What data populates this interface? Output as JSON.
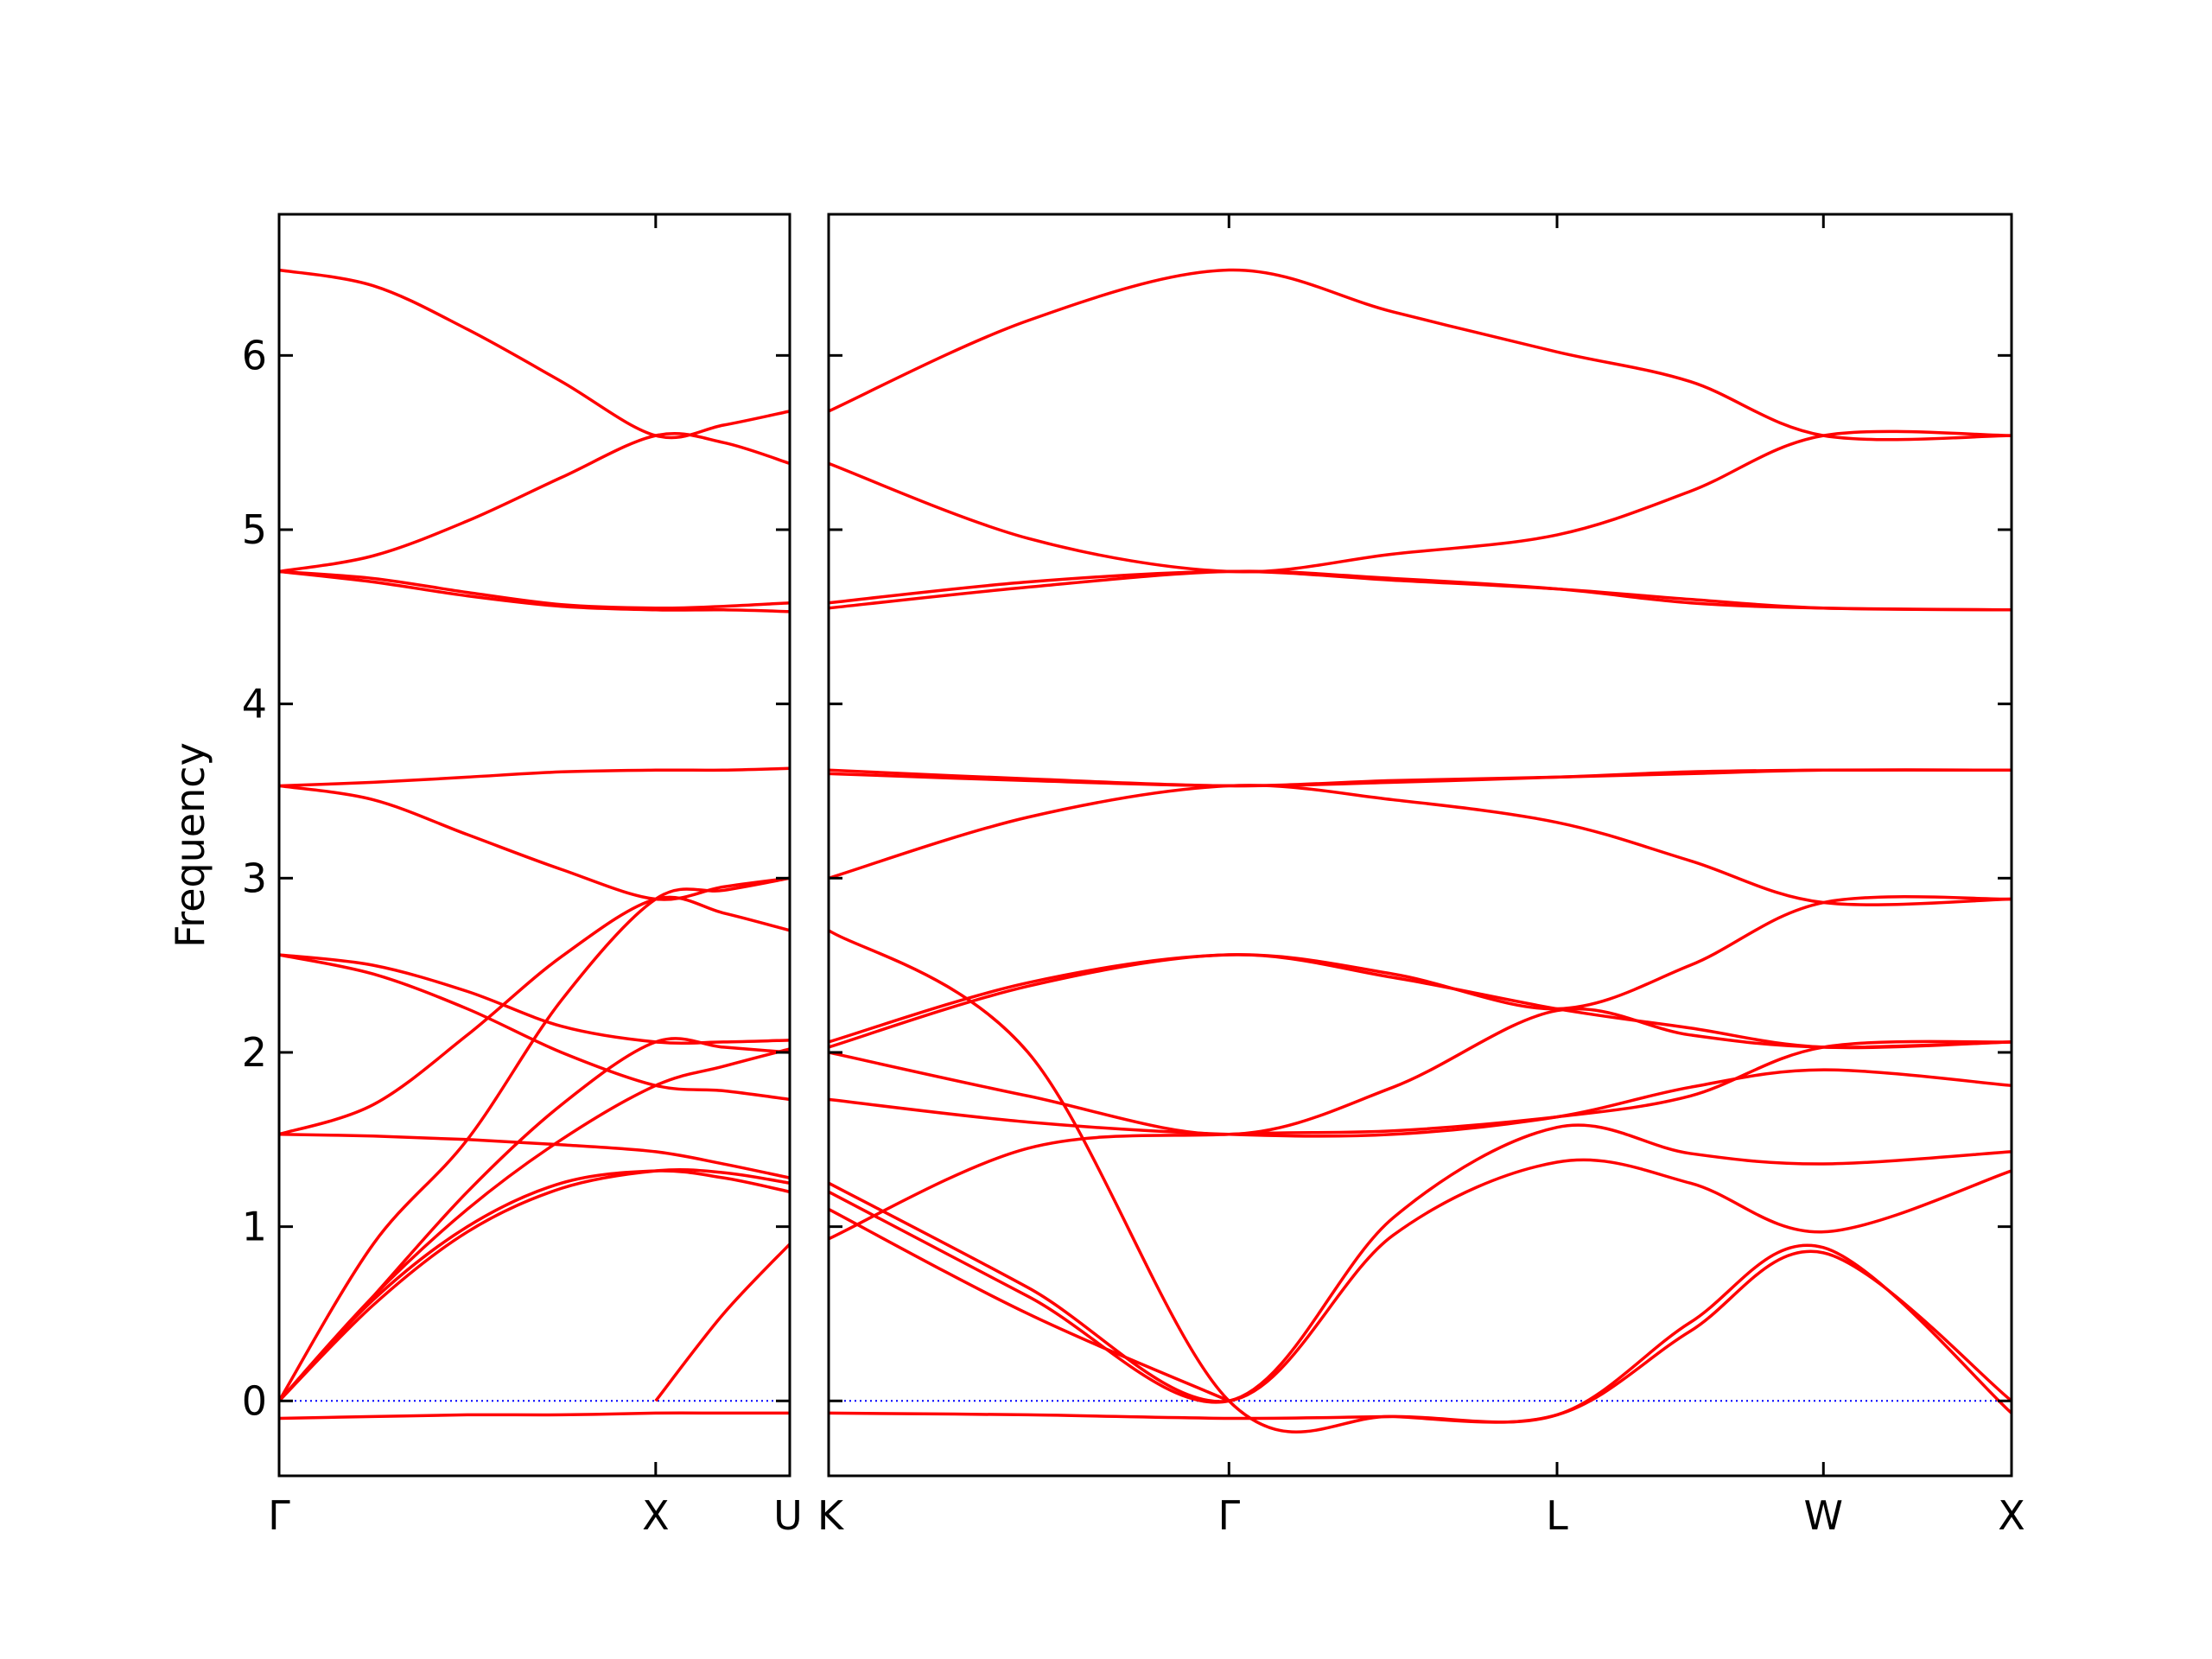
{
  "chart_data": [
    {
      "type": "line",
      "ylabel": "Frequency",
      "x": [
        0,
        0.25,
        0.5,
        0.75,
        1.0,
        1.18,
        1.356
      ],
      "xlim": [
        0,
        1.356
      ],
      "ylim": [
        -0.43,
        6.81
      ],
      "xticks": [
        {
          "value": 0,
          "label": "Γ"
        },
        {
          "value": 1.0,
          "label": "X"
        },
        {
          "value": 1.356,
          "label": "U"
        }
      ],
      "yticks": [
        0,
        1,
        2,
        3,
        4,
        5,
        6
      ],
      "show_ytick_labels": true,
      "reference_line": {
        "value": 0,
        "color": "#0000ff"
      },
      "series": [
        {
          "color": "#ff0000",
          "values": [
            -0.1,
            -0.09,
            -0.08,
            -0.08,
            -0.07,
            -0.07,
            -0.07
          ]
        },
        {
          "color": "#ff0000",
          "values": [
            null,
            null,
            null,
            null,
            0,
            0.5,
            0.9
          ]
        },
        {
          "color": "#ff0000",
          "values": [
            0,
            0.55,
            0.97,
            1.22,
            1.32,
            1.31,
            1.25
          ]
        },
        {
          "color": "#ff0000",
          "values": [
            0,
            0.58,
            1.0,
            1.25,
            1.32,
            1.28,
            1.2
          ]
        },
        {
          "color": "#ff0000",
          "values": [
            0,
            0.6,
            1.1,
            1.5,
            1.81,
            1.92,
            2.02
          ]
        },
        {
          "color": "#ff0000",
          "values": [
            0,
            0.9,
            1.5,
            2.3,
            2.88,
            2.93,
            3.0
          ]
        },
        {
          "color": "#ff0000",
          "values": [
            1.53,
            1.52,
            1.5,
            1.47,
            1.43,
            1.36,
            1.28
          ]
        },
        {
          "color": "#ff0000",
          "values": [
            1.53,
            1.7,
            2.1,
            2.55,
            2.88,
            2.8,
            2.7
          ]
        },
        {
          "color": "#ff0000",
          "values": [
            2.56,
            2.5,
            2.35,
            2.15,
            2.06,
            2.06,
            2.07
          ]
        },
        {
          "color": "#ff0000",
          "values": [
            2.56,
            2.45,
            2.25,
            2.0,
            1.81,
            1.78,
            1.73
          ]
        },
        {
          "color": "#ff0000",
          "values": [
            0,
            0.6,
            1.2,
            1.7,
            2.06,
            2.03,
            2.0
          ]
        },
        {
          "color": "#ff0000",
          "values": [
            3.53,
            3.45,
            3.25,
            3.05,
            2.88,
            2.95,
            3.0
          ]
        },
        {
          "color": "#ff0000",
          "values": [
            3.53,
            3.55,
            3.58,
            3.61,
            3.62,
            3.62,
            3.63
          ]
        },
        {
          "color": "#ff0000",
          "values": [
            4.76,
            4.7,
            4.62,
            4.56,
            4.54,
            4.54,
            4.53
          ]
        },
        {
          "color": "#ff0000",
          "values": [
            4.76,
            4.72,
            4.64,
            4.57,
            4.55,
            4.56,
            4.58
          ]
        },
        {
          "color": "#ff0000",
          "values": [
            4.76,
            4.85,
            5.05,
            5.3,
            5.54,
            5.5,
            5.38
          ]
        },
        {
          "color": "#ff0000",
          "values": [
            6.49,
            6.4,
            6.15,
            5.85,
            5.54,
            5.6,
            5.68
          ]
        }
      ]
    },
    {
      "type": "line",
      "x": [
        0,
        0.53,
        1.064,
        1.5,
        1.936,
        2.29,
        2.644,
        3.144
      ],
      "xlim": [
        0,
        3.144
      ],
      "ylim": [
        -0.43,
        6.81
      ],
      "xticks": [
        {
          "value": 0,
          "label": "K"
        },
        {
          "value": 1.064,
          "label": "Γ"
        },
        {
          "value": 1.936,
          "label": "L"
        },
        {
          "value": 2.644,
          "label": "W"
        },
        {
          "value": 3.144,
          "label": "X"
        }
      ],
      "yticks": [
        0,
        1,
        2,
        3,
        4,
        5,
        6
      ],
      "show_ytick_labels": false,
      "reference_line": {
        "value": 0,
        "color": "#0000ff"
      },
      "series": [
        {
          "color": "#ff0000",
          "values": [
            -0.07,
            -0.08,
            -0.1,
            -0.09,
            -0.08,
            0.45,
            0.88,
            -0.07
          ]
        },
        {
          "color": "#ff0000",
          "values": [
            1.25,
            0.65,
            0,
            0.95,
            1.37,
            1.25,
            0.97,
            1.32
          ]
        },
        {
          "color": "#ff0000",
          "values": [
            1.2,
            0.6,
            0,
            1.05,
            1.57,
            1.42,
            1.36,
            1.43
          ]
        },
        {
          "color": "#ff0000",
          "values": [
            2.7,
            2.0,
            0,
            -0.09,
            -0.08,
            0.4,
            0.85,
            0
          ]
        },
        {
          "color": "#ff0000",
          "values": [
            1.1,
            0.5,
            0,
            null,
            null,
            null,
            null,
            null
          ]
        },
        {
          "color": "#ff0000",
          "values": [
            0.93,
            1.45,
            1.53,
            1.55,
            1.63,
            1.75,
            2.03,
            2.06
          ]
        },
        {
          "color": "#ff0000",
          "values": [
            1.73,
            1.6,
            1.53,
            1.53,
            1.63,
            1.8,
            1.9,
            1.81
          ]
        },
        {
          "color": "#ff0000",
          "values": [
            2.0,
            1.75,
            1.53,
            1.8,
            2.24,
            2.1,
            2.03,
            2.06
          ]
        },
        {
          "color": "#ff0000",
          "values": [
            2.06,
            2.4,
            2.56,
            2.45,
            2.25,
            2.5,
            2.86,
            2.88
          ]
        },
        {
          "color": "#ff0000",
          "values": [
            2.03,
            2.38,
            2.56,
            2.43,
            2.25,
            2.14,
            2.03,
            2.06
          ]
        },
        {
          "color": "#ff0000",
          "values": [
            3.0,
            3.35,
            3.53,
            3.45,
            3.32,
            3.1,
            2.86,
            2.88
          ]
        },
        {
          "color": "#ff0000",
          "values": [
            3.62,
            3.57,
            3.53,
            3.56,
            3.58,
            3.61,
            3.62,
            3.62
          ]
        },
        {
          "color": "#ff0000",
          "values": [
            3.6,
            3.56,
            3.53,
            3.55,
            3.58,
            3.6,
            3.62,
            3.62
          ]
        },
        {
          "color": "#ff0000",
          "values": [
            4.58,
            4.7,
            4.76,
            4.71,
            4.66,
            4.6,
            4.55,
            4.54
          ]
        },
        {
          "color": "#ff0000",
          "values": [
            4.55,
            4.67,
            4.76,
            4.72,
            4.66,
            4.58,
            4.55,
            4.54
          ]
        },
        {
          "color": "#ff0000",
          "values": [
            5.38,
            4.95,
            4.76,
            4.86,
            4.97,
            5.22,
            5.54,
            5.54
          ]
        },
        {
          "color": "#ff0000",
          "values": [
            5.68,
            6.2,
            6.49,
            6.25,
            6.02,
            5.85,
            5.54,
            5.54
          ]
        }
      ]
    }
  ]
}
